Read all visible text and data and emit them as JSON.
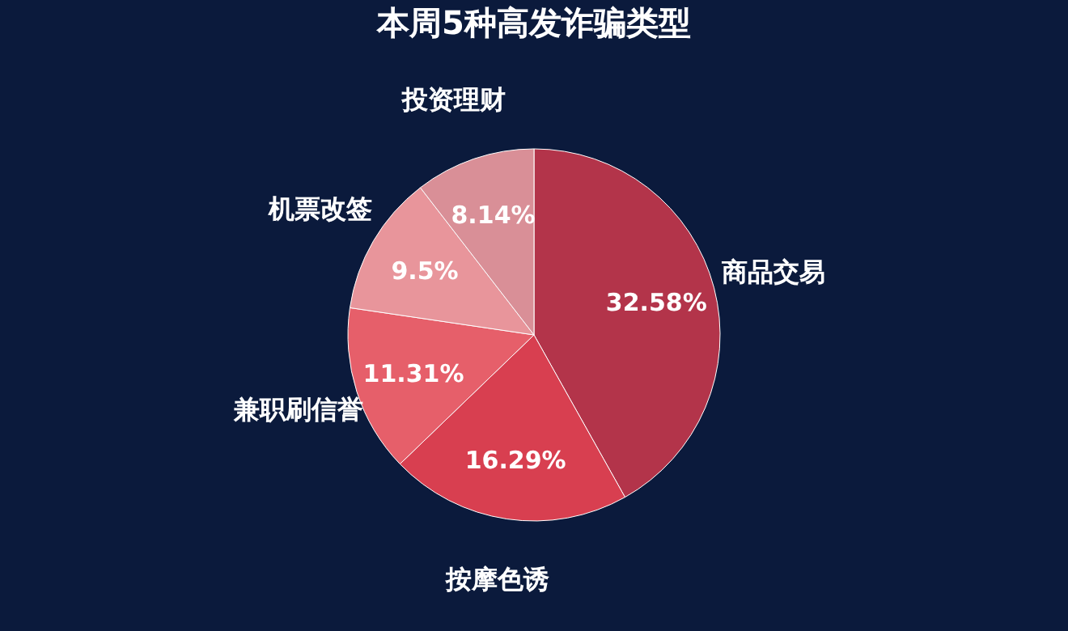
{
  "chart_data": {
    "type": "pie",
    "title": "本周5种高发诈骗类型",
    "categories": [
      "商品交易",
      "按摩色诱",
      "兼职刷信誉",
      "机票改签",
      "投资理财"
    ],
    "values": [
      32.58,
      16.29,
      11.31,
      9.5,
      8.14
    ],
    "colors": [
      "#b3344a",
      "#d83f50",
      "#e65f6a",
      "#e8959b",
      "#d98f97"
    ],
    "value_labels": [
      "32.58%",
      "16.29%",
      "11.31%",
      "9.5%",
      "8.14%"
    ],
    "legend": false
  }
}
